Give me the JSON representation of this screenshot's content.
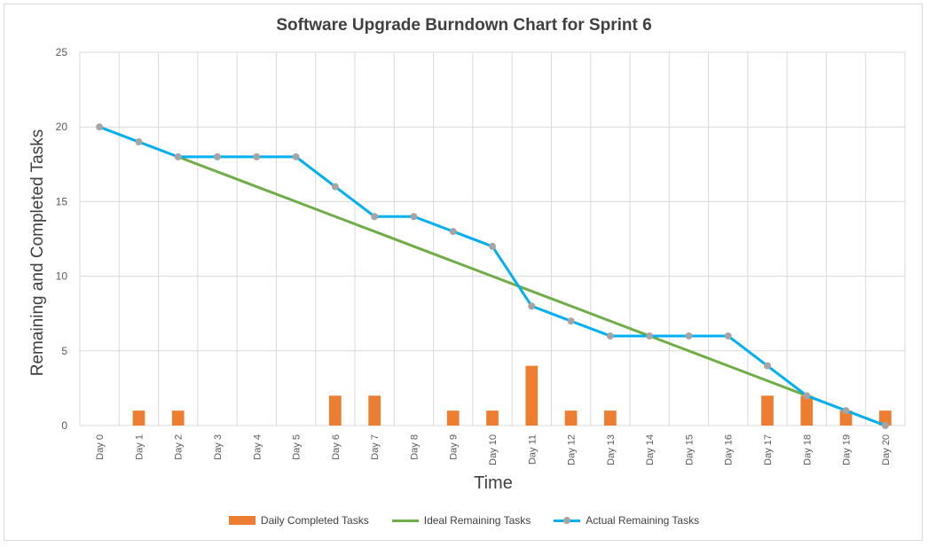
{
  "chart_data": {
    "type": "bar+line",
    "title": "Software Upgrade Burndown Chart for Sprint 6",
    "xlabel": "Time",
    "ylabel": "Remaining and Completed Tasks",
    "ylim": [
      0,
      25
    ],
    "yticks": [
      0,
      5,
      10,
      15,
      20,
      25
    ],
    "grid": true,
    "legend_position": "bottom",
    "categories": [
      "Day 0",
      "Day 1",
      "Day 2",
      "Day 3",
      "Day 4",
      "Day 5",
      "Day 6",
      "Day 7",
      "Day 8",
      "Day 9",
      "Day 10",
      "Day 11",
      "Day 12",
      "Day 13",
      "Day 14",
      "Day 15",
      "Day 16",
      "Day 17",
      "Day 18",
      "Day 19",
      "Day 20"
    ],
    "series": [
      {
        "name": "Daily Completed Tasks",
        "type": "bar",
        "color": "#ed7d31",
        "values": [
          0,
          1,
          1,
          0,
          0,
          0,
          2,
          2,
          0,
          1,
          1,
          4,
          1,
          1,
          0,
          0,
          0,
          2,
          2,
          1,
          1
        ]
      },
      {
        "name": "Ideal Remaining Tasks",
        "type": "line",
        "color": "#70ad47",
        "values": [
          null,
          null,
          18,
          17,
          16,
          15,
          14,
          13,
          12,
          11,
          10,
          9,
          8,
          7,
          6,
          5,
          4,
          3,
          2,
          1,
          0
        ]
      },
      {
        "name": "Actual Remaining Tasks",
        "type": "line",
        "color": "#00b0f0",
        "marker_color": "#a5a5a5",
        "values": [
          20,
          19,
          18,
          18,
          18,
          18,
          16,
          14,
          14,
          13,
          12,
          8,
          7,
          6,
          6,
          6,
          6,
          4,
          2,
          1,
          0
        ]
      }
    ]
  }
}
